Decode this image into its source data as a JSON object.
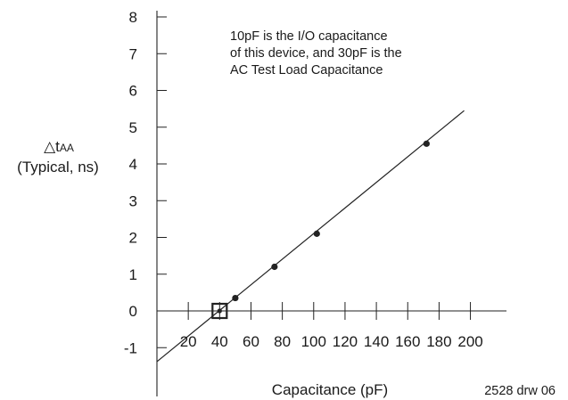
{
  "chart_data": {
    "type": "line",
    "title": "",
    "xlabel": "Capacitance (pF)",
    "ylabel_symbol": "△t",
    "ylabel_subscript": "AA",
    "ylabel_line2": "(Typical, ns)",
    "xlim": [
      0,
      205
    ],
    "ylim": [
      -2,
      8
    ],
    "x_ticks": [
      20,
      40,
      60,
      80,
      100,
      120,
      140,
      160,
      180,
      200
    ],
    "y_ticks": [
      8,
      7,
      6,
      5,
      4,
      3,
      2,
      1,
      0,
      -1
    ],
    "series": [
      {
        "points": [
          {
            "x": 50,
            "y": 0.35
          },
          {
            "x": 75,
            "y": 1.2
          },
          {
            "x": 102,
            "y": 2.1
          },
          {
            "x": 172,
            "y": 4.55
          }
        ],
        "fit_line": {
          "x0": 0,
          "y0": -1.38,
          "x1": 196,
          "y1": 5.45
        },
        "marker_open_square": {
          "x": 40,
          "y": 0
        }
      }
    ],
    "annotation": [
      "10pF is the I/O capacitance",
      "of this device, and 30pF is the",
      "AC Test Load Capacitance"
    ],
    "grid": false,
    "legend": "none"
  },
  "figure_ref": "2528 drw 06"
}
